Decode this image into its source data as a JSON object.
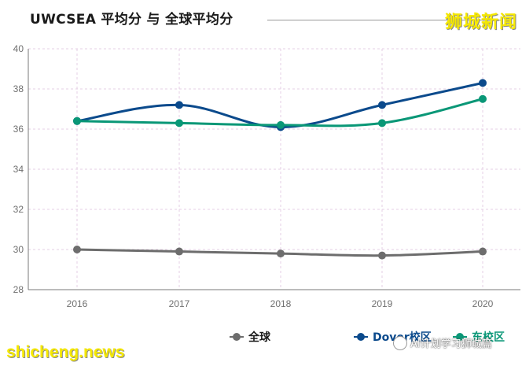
{
  "header": {
    "title": "UWCSEA 平均分 与 全球平均分",
    "brand": "狮城新闻"
  },
  "watermarks": {
    "site": "shicheng.news",
    "account": "AI计划学习狮城篇"
  },
  "colors": {
    "global": "#6d6d6d",
    "dover": "#0b4a8c",
    "east": "#0a9777",
    "grid": "#e4cfe4",
    "axis": "#7a7a7a"
  },
  "chart_data": {
    "type": "line",
    "categories": [
      "2016",
      "2017",
      "2018",
      "2019",
      "2020"
    ],
    "ylim": [
      28,
      40
    ],
    "yticks": [
      28,
      30,
      32,
      34,
      36,
      38,
      40
    ],
    "grid": true,
    "smooth": true,
    "legend_position": "bottom",
    "series": [
      {
        "name": "全球",
        "color_key": "global",
        "values": [
          30.0,
          29.9,
          29.8,
          29.7,
          29.9
        ]
      },
      {
        "name": "Dover校区",
        "color_key": "dover",
        "values": [
          36.4,
          37.2,
          36.1,
          37.2,
          38.3
        ]
      },
      {
        "name": "东校区",
        "color_key": "east",
        "values": [
          36.4,
          36.3,
          36.2,
          36.3,
          37.5
        ]
      }
    ]
  }
}
